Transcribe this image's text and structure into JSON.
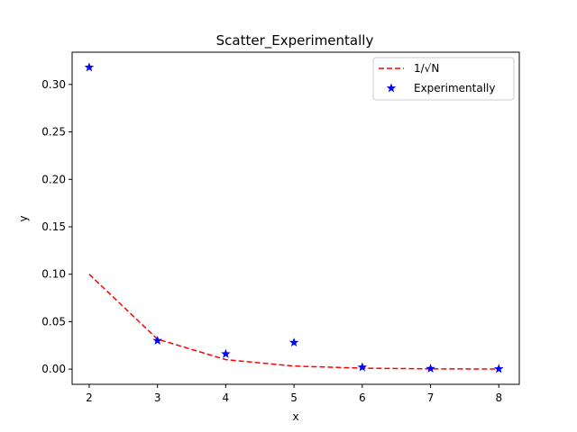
{
  "chart_data": {
    "type": "scatter",
    "title": "Scatter_Experimentally",
    "xlabel": "x",
    "ylabel": "y",
    "xlim": [
      1.75,
      8.3
    ],
    "ylim": [
      -0.016,
      0.334
    ],
    "xticks": [
      2,
      3,
      4,
      5,
      6,
      7,
      8
    ],
    "yticks": [
      0.0,
      0.05,
      0.1,
      0.15,
      0.2,
      0.25,
      0.3
    ],
    "ytick_labels": [
      "0.00",
      "0.05",
      "0.10",
      "0.15",
      "0.20",
      "0.25",
      "0.30"
    ],
    "grid": false,
    "legend_position": "top-right",
    "series": [
      {
        "name": "1/√N",
        "kind": "line",
        "style": "dashed",
        "color": "#ff0000",
        "x": [
          2,
          3,
          4,
          5,
          6,
          7,
          8
        ],
        "y": [
          0.1,
          0.0316,
          0.01,
          0.0032,
          0.001,
          0.0003,
          0.0001
        ]
      },
      {
        "name": "Experimentally",
        "kind": "scatter",
        "marker": "star",
        "color": "#0000ff",
        "x": [
          2,
          3,
          4,
          5,
          6,
          7,
          8
        ],
        "y": [
          0.318,
          0.03,
          0.016,
          0.028,
          0.002,
          0.0005,
          0.0002
        ]
      }
    ]
  }
}
